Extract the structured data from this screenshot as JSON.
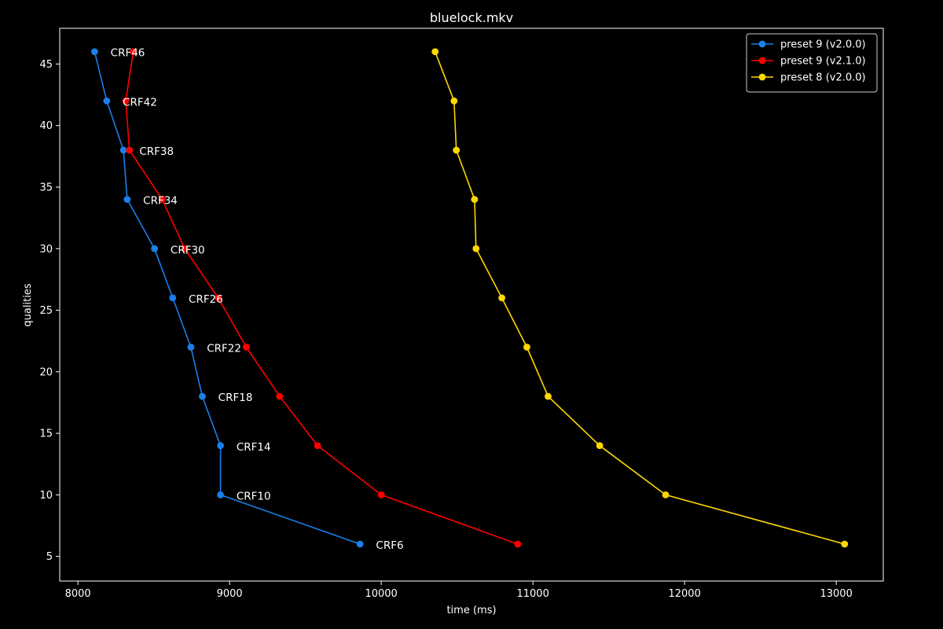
{
  "chart_data": {
    "type": "line",
    "title": "bluelock.mkv",
    "xlabel": "time (ms)",
    "ylabel": "qualities",
    "xlim": [
      7880,
      13310
    ],
    "ylim": [
      3.0,
      47.9
    ],
    "xticks": [
      8000,
      9000,
      10000,
      11000,
      12000,
      13000
    ],
    "yticks": [
      5,
      10,
      15,
      20,
      25,
      30,
      35,
      40,
      45
    ],
    "grid": false,
    "legend_position": "top-right",
    "series": [
      {
        "name": "preset 9 (v2.0.0)",
        "color": "#1a7fe8",
        "points": [
          {
            "x": 8110,
            "y": 46
          },
          {
            "x": 8190,
            "y": 42
          },
          {
            "x": 8300,
            "y": 38
          },
          {
            "x": 8325,
            "y": 34
          },
          {
            "x": 8505,
            "y": 30
          },
          {
            "x": 8625,
            "y": 26
          },
          {
            "x": 8745,
            "y": 22
          },
          {
            "x": 8820,
            "y": 18
          },
          {
            "x": 8940,
            "y": 14
          },
          {
            "x": 8940,
            "y": 10
          },
          {
            "x": 9860,
            "y": 6
          }
        ]
      },
      {
        "name": "preset 9 (v2.1.0)",
        "color": "#ff0000",
        "points": [
          {
            "x": 8365,
            "y": 46
          },
          {
            "x": 8315,
            "y": 42
          },
          {
            "x": 8340,
            "y": 38
          },
          {
            "x": 8555,
            "y": 34
          },
          {
            "x": 8705,
            "y": 30
          },
          {
            "x": 8925,
            "y": 26
          },
          {
            "x": 9110,
            "y": 22
          },
          {
            "x": 9330,
            "y": 18
          },
          {
            "x": 9580,
            "y": 14
          },
          {
            "x": 10000,
            "y": 10
          },
          {
            "x": 10900,
            "y": 6
          }
        ]
      },
      {
        "name": "preset 8 (v2.0.0)",
        "color": "#ffd700",
        "points": [
          {
            "x": 10355,
            "y": 46
          },
          {
            "x": 10480,
            "y": 42
          },
          {
            "x": 10495,
            "y": 38
          },
          {
            "x": 10615,
            "y": 34
          },
          {
            "x": 10625,
            "y": 30
          },
          {
            "x": 10795,
            "y": 26
          },
          {
            "x": 10960,
            "y": 22
          },
          {
            "x": 11100,
            "y": 18
          },
          {
            "x": 11440,
            "y": 14
          },
          {
            "x": 11875,
            "y": 10
          },
          {
            "x": 13055,
            "y": 6
          }
        ]
      }
    ],
    "annotations": [
      {
        "text": "CRF46",
        "x": 8215,
        "y": 46
      },
      {
        "text": "CRF42",
        "x": 8295,
        "y": 42
      },
      {
        "text": "CRF38",
        "x": 8405,
        "y": 38
      },
      {
        "text": "CRF34",
        "x": 8430,
        "y": 34
      },
      {
        "text": "CRF30",
        "x": 8610,
        "y": 30
      },
      {
        "text": "CRF26",
        "x": 8730,
        "y": 26
      },
      {
        "text": "CRF22",
        "x": 8850,
        "y": 22
      },
      {
        "text": "CRF18",
        "x": 8925,
        "y": 18
      },
      {
        "text": "CRF14",
        "x": 9045,
        "y": 14
      },
      {
        "text": "CRF10",
        "x": 9045,
        "y": 10
      },
      {
        "text": "CRF6",
        "x": 9965,
        "y": 6
      }
    ]
  }
}
